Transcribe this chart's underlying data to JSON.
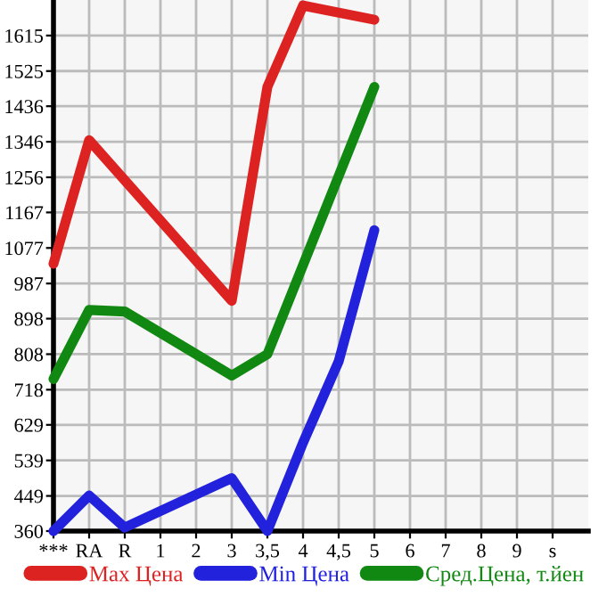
{
  "chart_data": {
    "type": "line",
    "categories": [
      "***",
      "RA",
      "R",
      "1",
      "2",
      "3",
      "3,5",
      "4",
      "4,5",
      "5",
      "6",
      "7",
      "8",
      "9",
      "s"
    ],
    "series": [
      {
        "name": "Max Цена",
        "color": "#dd2222",
        "values": [
          1037,
          1350,
          null,
          null,
          null,
          943,
          1485,
          1691,
          null,
          1655,
          null,
          null,
          null,
          null,
          null
        ]
      },
      {
        "name": "Min Цена",
        "color": "#2222dd",
        "values": [
          360,
          450,
          369,
          null,
          null,
          494,
          360,
          584,
          790,
          1122,
          null,
          null,
          null,
          null,
          null
        ]
      },
      {
        "name": "Сред.Цена, т.йен",
        "color": "#118811",
        "values": [
          745,
          920,
          916,
          null,
          null,
          754,
          808,
          null,
          null,
          1485,
          null,
          null,
          null,
          null,
          null
        ]
      }
    ],
    "ylim": [
      360,
      1705
    ],
    "yticks": [
      360,
      449,
      539,
      629,
      718,
      808,
      898,
      987,
      1077,
      1167,
      1256,
      1346,
      1436,
      1525,
      1615
    ],
    "grid": true,
    "legend": "bottom",
    "marker": "none",
    "line_style": "solid"
  }
}
